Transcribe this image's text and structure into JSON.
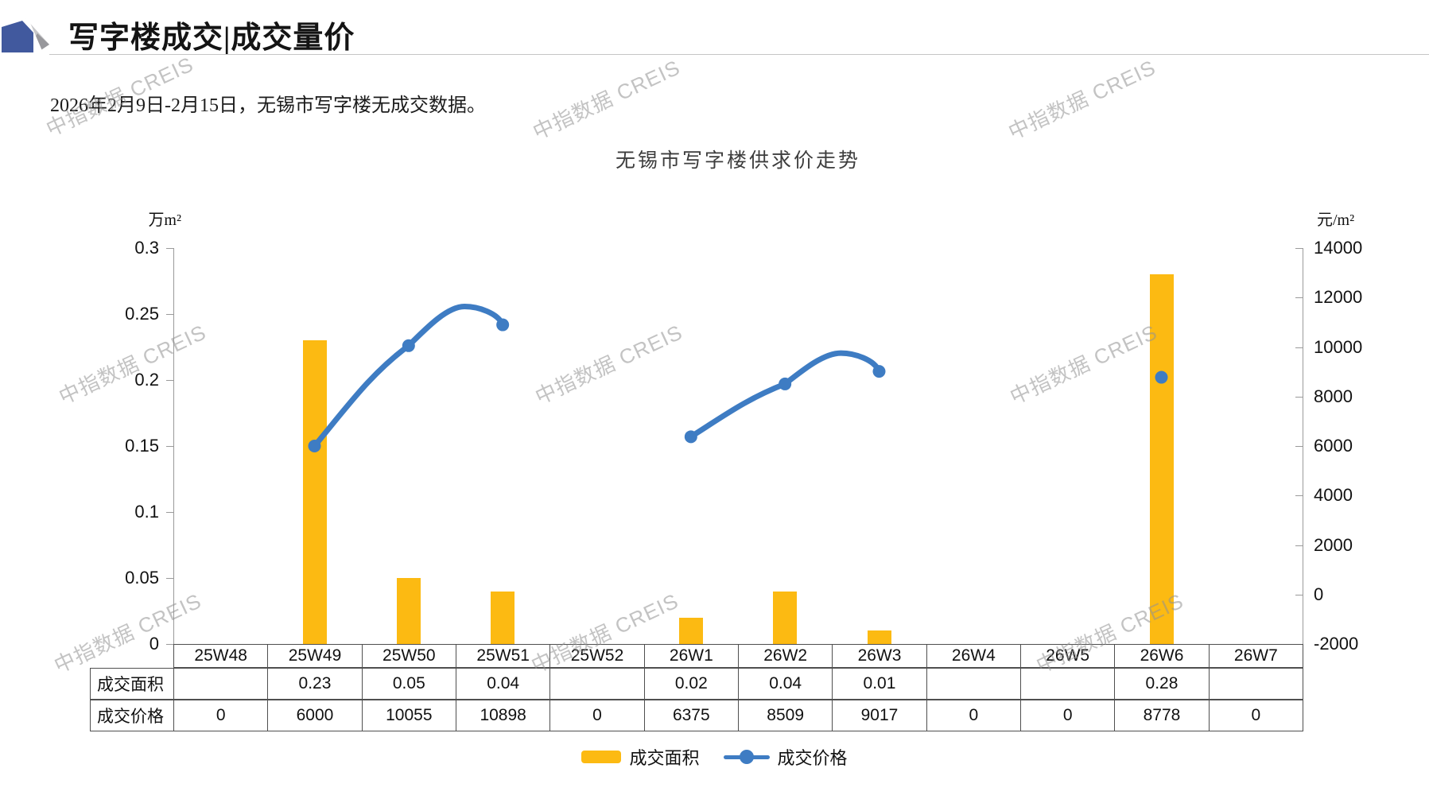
{
  "header": {
    "title": "写字楼成交|成交量价",
    "subtitle": "2026年2月9日-2月15日，无锡市写字楼无成交数据。"
  },
  "watermark_text": "中指数据 CREIS",
  "chart_data": {
    "type": "bar+line combo",
    "title": "无锡市写字楼供求价走势",
    "categories": [
      "25W48",
      "25W49",
      "25W50",
      "25W51",
      "25W52",
      "26W1",
      "26W2",
      "26W3",
      "26W4",
      "26W5",
      "26W6",
      "26W7"
    ],
    "series": [
      {
        "name": "成交面积",
        "type": "bar",
        "axis": "left",
        "unit": "万m²",
        "values": [
          null,
          0.23,
          0.05,
          0.04,
          null,
          0.02,
          0.04,
          0.01,
          null,
          null,
          0.28,
          null
        ]
      },
      {
        "name": "成交价格",
        "type": "line",
        "axis": "right",
        "unit": "元/m²",
        "values": [
          0,
          6000,
          10055,
          10898,
          0,
          6375,
          8509,
          9017,
          0,
          0,
          8778,
          0
        ]
      }
    ],
    "left_axis": {
      "label": "万m²",
      "min": 0,
      "max": 0.3,
      "ticks": [
        "0.3",
        "0.25",
        "0.2",
        "0.15",
        "0.1",
        "0.05",
        "0"
      ]
    },
    "right_axis": {
      "label": "元/m²",
      "min": -2000,
      "max": 14000,
      "ticks": [
        "14000",
        "12000",
        "10000",
        "8000",
        "6000",
        "4000",
        "2000",
        "0",
        "-2000"
      ]
    },
    "grid": false,
    "legend_position": "bottom",
    "colors": {
      "bar": "#FCBA12",
      "line": "#3E7CC3"
    }
  },
  "table": {
    "row_labels": [
      "成交面积",
      "成交价格"
    ],
    "area_row": [
      "",
      "0.23",
      "0.05",
      "0.04",
      "",
      "0.02",
      "0.04",
      "0.01",
      "",
      "",
      "0.28",
      ""
    ],
    "price_row": [
      "0",
      "6000",
      "10055",
      "10898",
      "0",
      "6375",
      "8509",
      "9017",
      "0",
      "0",
      "8778",
      "0"
    ]
  },
  "legend": {
    "area_label": "成交面积",
    "price_label": "成交价格"
  }
}
